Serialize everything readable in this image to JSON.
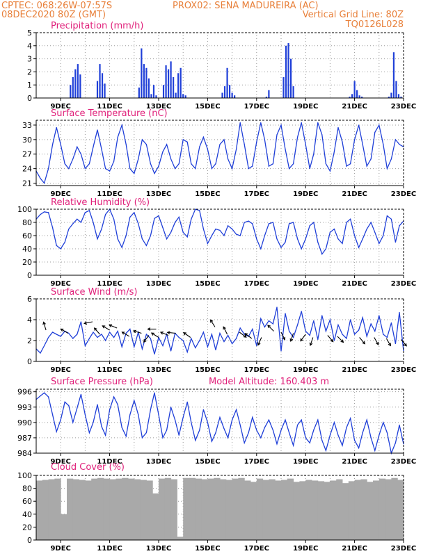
{
  "header": {
    "line1_left": "CPTEC:   068:26W-07:57S",
    "line1_right": "PROX02: SENA MADUREIRA (AC)",
    "line2_left": "08DEC2020 80Z (GMT)",
    "line2_right": "Vertical Grid Line: 80Z",
    "line3_right": "TQ0126L028"
  },
  "colors": {
    "header": "#e8803a",
    "title": "#e0207a",
    "line": "#1f3fd8",
    "cloud": "#a9a9a9",
    "grid": "#999999"
  },
  "x_axis": {
    "start_day": 8.0,
    "end_day": 23.0,
    "ticks": [
      9,
      11,
      13,
      15,
      17,
      19,
      21,
      23
    ],
    "tick_labels": [
      "9DEC",
      "11DEC",
      "13DEC",
      "15DEC",
      "17DEC",
      "19DEC",
      "21DEC",
      "23DEC"
    ],
    "grid_days": [
      9,
      10,
      11,
      12,
      13,
      14,
      15,
      16,
      17,
      18,
      19,
      20,
      21,
      22
    ]
  },
  "chart_data": [
    {
      "type": "bar",
      "title": "Precipitation (mm/h)",
      "ylim": [
        0,
        5
      ],
      "yticks": [
        0,
        1,
        2,
        3,
        4,
        5
      ],
      "x": [
        9.4,
        9.5,
        9.6,
        9.7,
        9.8,
        10.5,
        10.6,
        10.7,
        10.8,
        12.2,
        12.3,
        12.4,
        12.5,
        12.6,
        12.7,
        12.8,
        12.9,
        13.2,
        13.3,
        13.4,
        13.5,
        13.6,
        13.7,
        13.8,
        13.9,
        14.0,
        14.1,
        15.6,
        15.7,
        15.8,
        15.9,
        16.0,
        16.1,
        17.4,
        17.5,
        18.1,
        18.2,
        18.3,
        18.4,
        18.5,
        20.8,
        20.9,
        21.0,
        21.1,
        21.2,
        21.3,
        22.4,
        22.5,
        22.6,
        22.7,
        22.8,
        22.9
      ],
      "values": [
        1.0,
        1.6,
        2.2,
        2.6,
        1.8,
        1.3,
        2.6,
        1.9,
        1.1,
        0.8,
        3.8,
        2.6,
        2.3,
        1.5,
        0.3,
        1.0,
        0.2,
        1.0,
        2.5,
        2.2,
        2.8,
        1.6,
        0.4,
        1.9,
        2.3,
        0.3,
        0.2,
        0.4,
        0.9,
        2.3,
        1.0,
        0.4,
        0.2,
        0.1,
        0.6,
        1.6,
        4.0,
        4.2,
        3.0,
        0.9,
        0.1,
        0.3,
        1.3,
        0.6,
        0.2,
        0.1,
        0.1,
        0.4,
        3.5,
        1.3,
        0.3,
        0.1
      ]
    },
    {
      "type": "line",
      "title": "Surface Temperature (nC)",
      "ylim": [
        20.5,
        34
      ],
      "yticks": [
        21,
        24,
        27,
        30,
        33
      ],
      "x": [
        8.0,
        8.17,
        8.33,
        8.5,
        8.67,
        8.83,
        9.0,
        9.17,
        9.33,
        9.5,
        9.67,
        9.83,
        10.0,
        10.17,
        10.33,
        10.5,
        10.67,
        10.83,
        11.0,
        11.17,
        11.33,
        11.5,
        11.67,
        11.83,
        12.0,
        12.17,
        12.33,
        12.5,
        12.67,
        12.83,
        13.0,
        13.17,
        13.33,
        13.5,
        13.67,
        13.83,
        14.0,
        14.17,
        14.33,
        14.5,
        14.67,
        14.83,
        15.0,
        15.17,
        15.33,
        15.5,
        15.67,
        15.83,
        16.0,
        16.17,
        16.33,
        16.5,
        16.67,
        16.83,
        17.0,
        17.17,
        17.33,
        17.5,
        17.67,
        17.83,
        18.0,
        18.17,
        18.33,
        18.5,
        18.67,
        18.83,
        19.0,
        19.17,
        19.33,
        19.5,
        19.67,
        19.83,
        20.0,
        20.17,
        20.33,
        20.5,
        20.67,
        20.83,
        21.0,
        21.17,
        21.33,
        21.5,
        21.67,
        21.83,
        22.0,
        22.17,
        22.33,
        22.5,
        22.67,
        22.83,
        23.0
      ],
      "values": [
        23.5,
        22.0,
        21.0,
        24.0,
        29.0,
        32.5,
        29.0,
        25.0,
        24.0,
        26.0,
        28.5,
        27.0,
        24.0,
        25.0,
        28.5,
        32.0,
        28.0,
        24.0,
        23.5,
        25.5,
        30.5,
        33.0,
        29.0,
        24.0,
        23.0,
        26.0,
        30.0,
        29.0,
        25.0,
        23.0,
        24.5,
        27.5,
        29.0,
        26.0,
        24.0,
        25.0,
        30.0,
        29.5,
        25.0,
        24.0,
        28.5,
        30.5,
        28.0,
        24.0,
        25.0,
        29.0,
        30.0,
        26.0,
        24.0,
        28.0,
        33.5,
        29.0,
        24.0,
        24.5,
        29.5,
        33.5,
        30.0,
        24.5,
        25.0,
        31.0,
        33.0,
        28.0,
        24.0,
        25.0,
        30.5,
        33.5,
        29.0,
        24.0,
        27.0,
        33.5,
        31.0,
        25.0,
        23.5,
        27.5,
        32.5,
        29.5,
        24.5,
        25.0,
        30.0,
        33.0,
        29.0,
        24.5,
        26.0,
        31.5,
        33.0,
        29.0,
        24.0,
        26.0,
        30.0,
        29.0,
        28.5
      ]
    },
    {
      "type": "line",
      "title": "Relative Humidity (%)",
      "ylim": [
        0,
        100
      ],
      "yticks": [
        0,
        20,
        40,
        60,
        80,
        100
      ],
      "x": [
        8.0,
        8.17,
        8.33,
        8.5,
        8.67,
        8.83,
        9.0,
        9.17,
        9.33,
        9.5,
        9.67,
        9.83,
        10.0,
        10.17,
        10.33,
        10.5,
        10.67,
        10.83,
        11.0,
        11.17,
        11.33,
        11.5,
        11.67,
        11.83,
        12.0,
        12.17,
        12.33,
        12.5,
        12.67,
        12.83,
        13.0,
        13.17,
        13.33,
        13.5,
        13.67,
        13.83,
        14.0,
        14.17,
        14.33,
        14.5,
        14.67,
        14.83,
        15.0,
        15.17,
        15.33,
        15.5,
        15.67,
        15.83,
        16.0,
        16.17,
        16.33,
        16.5,
        16.67,
        16.83,
        17.0,
        17.17,
        17.33,
        17.5,
        17.67,
        17.83,
        18.0,
        18.17,
        18.33,
        18.5,
        18.67,
        18.83,
        19.0,
        19.17,
        19.33,
        19.5,
        19.67,
        19.83,
        20.0,
        20.17,
        20.33,
        20.5,
        20.67,
        20.83,
        21.0,
        21.17,
        21.33,
        21.5,
        21.67,
        21.83,
        22.0,
        22.17,
        22.33,
        22.5,
        22.67,
        22.83,
        23.0
      ],
      "values": [
        85,
        92,
        96,
        95,
        72,
        45,
        40,
        50,
        70,
        78,
        85,
        80,
        95,
        98,
        80,
        55,
        70,
        92,
        100,
        85,
        55,
        42,
        60,
        88,
        95,
        78,
        55,
        45,
        60,
        86,
        90,
        72,
        55,
        65,
        80,
        88,
        65,
        58,
        85,
        100,
        98,
        70,
        48,
        60,
        70,
        68,
        60,
        75,
        70,
        62,
        60,
        80,
        82,
        78,
        55,
        40,
        60,
        78,
        80,
        55,
        42,
        50,
        78,
        80,
        55,
        40,
        55,
        75,
        80,
        50,
        32,
        40,
        65,
        70,
        55,
        48,
        80,
        85,
        60,
        42,
        55,
        70,
        80,
        65,
        48,
        60,
        90,
        85,
        50,
        75,
        82
      ]
    },
    {
      "type": "line",
      "title": "Surface Wind (m/s)",
      "ylim": [
        0,
        6
      ],
      "yticks": [
        0,
        2,
        4,
        6
      ],
      "x": [
        8.0,
        8.17,
        8.33,
        8.5,
        8.67,
        8.83,
        9.0,
        9.17,
        9.33,
        9.5,
        9.67,
        9.83,
        10.0,
        10.17,
        10.33,
        10.5,
        10.67,
        10.83,
        11.0,
        11.17,
        11.33,
        11.5,
        11.67,
        11.83,
        12.0,
        12.17,
        12.33,
        12.5,
        12.67,
        12.83,
        13.0,
        13.17,
        13.33,
        13.5,
        13.67,
        13.83,
        14.0,
        14.17,
        14.33,
        14.5,
        14.67,
        14.83,
        15.0,
        15.17,
        15.33,
        15.5,
        15.67,
        15.83,
        16.0,
        16.17,
        16.33,
        16.5,
        16.67,
        16.83,
        17.0,
        17.17,
        17.33,
        17.5,
        17.67,
        17.83,
        18.0,
        18.17,
        18.33,
        18.5,
        18.67,
        18.83,
        19.0,
        19.17,
        19.33,
        19.5,
        19.67,
        19.83,
        20.0,
        20.17,
        20.33,
        20.5,
        20.67,
        20.83,
        21.0,
        21.17,
        21.33,
        21.5,
        21.67,
        21.83,
        22.0,
        22.17,
        22.33,
        22.5,
        22.67,
        22.83,
        23.0
      ],
      "values": [
        1.2,
        0.8,
        1.5,
        2.3,
        2.8,
        2.6,
        2.4,
        2.9,
        2.7,
        2.2,
        2.6,
        3.8,
        1.5,
        2.2,
        2.8,
        2.3,
        2.6,
        2.0,
        2.8,
        2.3,
        2.9,
        1.4,
        2.7,
        3.1,
        1.4,
        2.8,
        1.2,
        2.6,
        2.2,
        0.7,
        2.3,
        1.5,
        2.6,
        1.0,
        2.7,
        2.3,
        2.0,
        0.9,
        2.2,
        1.3,
        2.0,
        2.8,
        1.4,
        2.6,
        1.1,
        2.7,
        1.9,
        2.5,
        1.7,
        2.2,
        3.2,
        2.6,
        2.4,
        3.1,
        1.5,
        4.1,
        3.3,
        3.9,
        3.6,
        5.2,
        1.0,
        4.6,
        2.9,
        2.3,
        3.5,
        4.8,
        2.9,
        2.5,
        3.9,
        2.1,
        4.4,
        2.9,
        4.0,
        2.0,
        3.5,
        2.6,
        2.2,
        4.0,
        2.6,
        3.0,
        4.2,
        2.4,
        3.6,
        2.9,
        4.4,
        2.6,
        2.3,
        3.7,
        1.7,
        4.7,
        1.0
      ],
      "arrows": [
        {
          "x": 8.4,
          "y": 3.0,
          "u": -0.3,
          "v": 1.0
        },
        {
          "x": 9.3,
          "y": 2.7,
          "u": -1.0,
          "v": 0.6
        },
        {
          "x": 10.3,
          "y": 3.8,
          "u": -1.0,
          "v": -0.2
        },
        {
          "x": 10.6,
          "y": 2.6,
          "u": -0.7,
          "v": 0.8
        },
        {
          "x": 11.0,
          "y": 3.0,
          "u": -1.0,
          "v": 0.6
        },
        {
          "x": 11.3,
          "y": 3.2,
          "u": -1.0,
          "v": 0.4
        },
        {
          "x": 11.8,
          "y": 2.4,
          "u": -1.0,
          "v": 0.6
        },
        {
          "x": 12.3,
          "y": 2.7,
          "u": -1.0,
          "v": 0.3
        },
        {
          "x": 12.6,
          "y": 2.5,
          "u": -0.6,
          "v": -0.8
        },
        {
          "x": 12.9,
          "y": 3.1,
          "u": -1.0,
          "v": 0.0
        },
        {
          "x": 13.0,
          "y": 2.3,
          "u": -0.8,
          "v": 0.5
        },
        {
          "x": 13.4,
          "y": 2.5,
          "u": -1.0,
          "v": 0.4
        },
        {
          "x": 13.7,
          "y": 2.7,
          "u": -1.0,
          "v": 0.1
        },
        {
          "x": 14.3,
          "y": 2.3,
          "u": -1.0,
          "v": 0.7
        },
        {
          "x": 15.3,
          "y": 3.3,
          "u": -0.5,
          "v": 0.8
        },
        {
          "x": 15.8,
          "y": 2.6,
          "u": -0.4,
          "v": 0.8
        },
        {
          "x": 16.3,
          "y": 2.8,
          "u": 0.8,
          "v": -0.6
        },
        {
          "x": 16.8,
          "y": 2.2,
          "u": -0.8,
          "v": 0.6
        },
        {
          "x": 17.2,
          "y": 2.3,
          "u": -0.4,
          "v": -0.9
        },
        {
          "x": 17.7,
          "y": 2.9,
          "u": -0.7,
          "v": 0.7
        },
        {
          "x": 18.0,
          "y": 2.8,
          "u": 0.5,
          "v": -1.0
        },
        {
          "x": 18.5,
          "y": 2.7,
          "u": -0.3,
          "v": -0.9
        },
        {
          "x": 19.0,
          "y": 2.6,
          "u": -0.6,
          "v": -0.8
        },
        {
          "x": 19.3,
          "y": 2.3,
          "u": -0.3,
          "v": -0.9
        },
        {
          "x": 19.9,
          "y": 2.5,
          "u": 0.6,
          "v": -0.7
        },
        {
          "x": 20.3,
          "y": 2.4,
          "u": 0.6,
          "v": -0.6
        },
        {
          "x": 21.2,
          "y": 2.3,
          "u": 0.5,
          "v": -0.6
        },
        {
          "x": 21.8,
          "y": 2.3,
          "u": 0.4,
          "v": -0.7
        },
        {
          "x": 22.3,
          "y": 2.2,
          "u": 0.4,
          "v": -0.7
        },
        {
          "x": 22.9,
          "y": 2.1,
          "u": 0.5,
          "v": -0.6
        }
      ]
    },
    {
      "type": "line",
      "title": "Surface Pressure (hPa)",
      "annotation": "Model Altitude: 160.403 m",
      "ylim": [
        984,
        996.5
      ],
      "yticks": [
        984,
        987,
        990,
        993,
        996
      ],
      "x": [
        8.0,
        8.17,
        8.33,
        8.5,
        8.67,
        8.83,
        9.0,
        9.17,
        9.33,
        9.5,
        9.67,
        9.83,
        10.0,
        10.17,
        10.33,
        10.5,
        10.67,
        10.83,
        11.0,
        11.17,
        11.33,
        11.5,
        11.67,
        11.83,
        12.0,
        12.17,
        12.33,
        12.5,
        12.67,
        12.83,
        13.0,
        13.17,
        13.33,
        13.5,
        13.67,
        13.83,
        14.0,
        14.17,
        14.33,
        14.5,
        14.67,
        14.83,
        15.0,
        15.17,
        15.33,
        15.5,
        15.67,
        15.83,
        16.0,
        16.17,
        16.33,
        16.5,
        16.67,
        16.83,
        17.0,
        17.17,
        17.33,
        17.5,
        17.67,
        17.83,
        18.0,
        18.17,
        18.33,
        18.5,
        18.67,
        18.83,
        19.0,
        19.17,
        19.33,
        19.5,
        19.67,
        19.83,
        20.0,
        20.17,
        20.33,
        20.5,
        20.67,
        20.83,
        21.0,
        21.17,
        21.33,
        21.5,
        21.67,
        21.83,
        22.0,
        22.17,
        22.33,
        22.5,
        22.67,
        22.83,
        23.0
      ],
      "values": [
        994.5,
        995.2,
        995.8,
        995.0,
        991.5,
        988.2,
        990.5,
        994.0,
        993.3,
        990.0,
        992.8,
        995.5,
        991.5,
        988.0,
        990.0,
        993.5,
        989.2,
        987.5,
        992.5,
        995.0,
        993.5,
        989.0,
        987.3,
        991.5,
        994.3,
        991.5,
        987.0,
        988.0,
        992.5,
        995.8,
        991.5,
        987.0,
        988.5,
        993.0,
        990.5,
        987.5,
        991.0,
        994.0,
        990.0,
        986.5,
        988.5,
        992.5,
        990.0,
        986.3,
        988.0,
        991.0,
        988.8,
        987.0,
        990.5,
        992.5,
        989.5,
        986.0,
        988.0,
        991.0,
        988.5,
        987.0,
        989.0,
        990.5,
        988.5,
        985.8,
        988.5,
        990.5,
        988.0,
        985.5,
        989.5,
        990.5,
        987.0,
        986.0,
        988.5,
        990.5,
        986.5,
        984.5,
        987.5,
        990.0,
        987.5,
        985.5,
        989.0,
        990.8,
        986.5,
        985.0,
        988.0,
        990.5,
        987.0,
        984.5,
        987.5,
        990.0,
        988.0,
        984.0,
        986.0,
        989.5,
        985.8
      ]
    },
    {
      "type": "bar",
      "title": "Cloud Cover (%)",
      "ylim": [
        0,
        100
      ],
      "yticks": [
        0,
        20,
        40,
        60,
        80,
        100
      ],
      "x": [
        8.0,
        8.25,
        8.5,
        8.75,
        9.0,
        9.25,
        9.5,
        9.75,
        10.0,
        10.25,
        10.5,
        10.75,
        11.0,
        11.25,
        11.5,
        11.75,
        12.0,
        12.25,
        12.5,
        12.75,
        13.0,
        13.25,
        13.5,
        13.75,
        14.0,
        14.25,
        14.5,
        14.75,
        15.0,
        15.25,
        15.5,
        15.75,
        16.0,
        16.25,
        16.5,
        16.75,
        17.0,
        17.25,
        17.5,
        17.75,
        18.0,
        18.25,
        18.5,
        18.75,
        19.0,
        19.25,
        19.5,
        19.75,
        20.0,
        20.25,
        20.5,
        20.75,
        21.0,
        21.25,
        21.5,
        21.75,
        22.0,
        22.25,
        22.5,
        22.75,
        23.0
      ],
      "values": [
        92,
        93,
        94,
        95,
        40,
        95,
        94,
        93,
        92,
        95,
        96,
        95,
        94,
        95,
        96,
        95,
        94,
        93,
        92,
        72,
        95,
        96,
        94,
        5,
        96,
        96,
        95,
        94,
        95,
        96,
        94,
        93,
        95,
        96,
        92,
        90,
        95,
        93,
        94,
        92,
        93,
        95,
        90,
        91,
        93,
        92,
        91,
        90,
        92,
        94,
        88,
        91,
        93,
        94,
        90,
        92,
        95,
        94,
        96,
        93,
        95
      ]
    }
  ]
}
